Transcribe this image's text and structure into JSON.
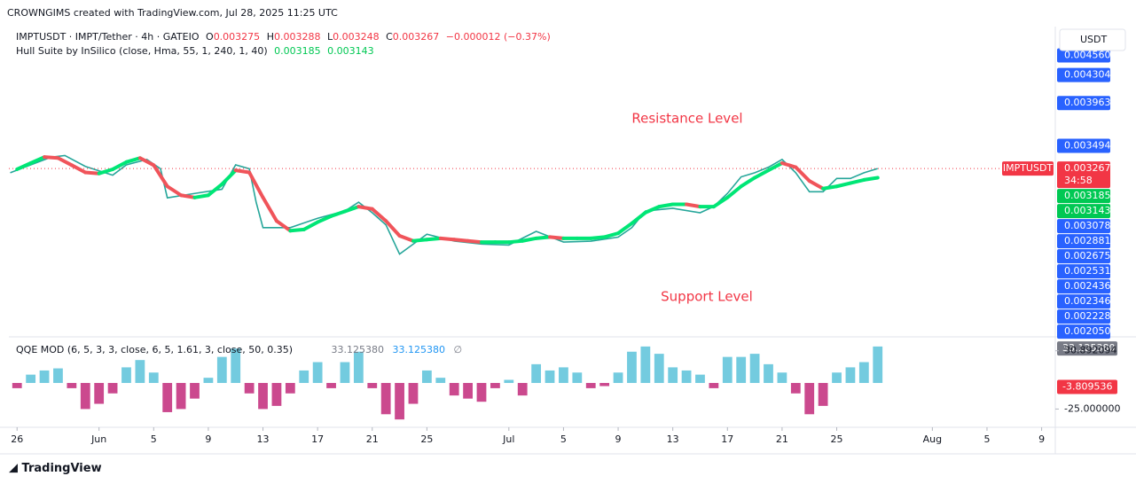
{
  "header": "CROWNGIMS created with TradingView.com, Jul 28, 2025 11:25 UTC",
  "legend": {
    "symbol": "IMPTUSDT · IMPT/Tether · 4h · GATEIO",
    "open_label": "O",
    "open": "0.003275",
    "high_label": "H",
    "high": "0.003288",
    "low_label": "L",
    "low": "0.003248",
    "close_label": "C",
    "close": "0.003267",
    "change": "−0.000012 (−0.37%)"
  },
  "hull_legend": {
    "value1": "0.003185",
    "value2": "0.003143"
  },
  "qqe_legend": {
    "name": "QQE MOD (6, 5, 3, 3, close, 6, 5, 1.61, 3, close, 50, 0.35)",
    "value1": "33.125380",
    "value2": "33.125380",
    "symbol": "∅"
  },
  "currency": "USDT",
  "price_tag": {
    "price": "0.003267",
    "countdown": "34:58"
  },
  "annotations": [
    "Resistance Level",
    "Support Level"
  ],
  "footer": "TradingView",
  "chart_data": [
    {
      "type": "line",
      "log": true,
      "xlim": [
        -0.6,
        76
      ],
      "xticks": [
        {
          "value": 0,
          "label": "26"
        },
        {
          "value": 6,
          "label": "Jun"
        },
        {
          "value": 10,
          "label": "5"
        },
        {
          "value": 14,
          "label": "9"
        },
        {
          "value": 18,
          "label": "13"
        },
        {
          "value": 22,
          "label": "17"
        },
        {
          "value": 26,
          "label": "21"
        },
        {
          "value": 30,
          "label": "25"
        },
        {
          "value": 36,
          "label": "Jul"
        },
        {
          "value": 40,
          "label": "5"
        },
        {
          "value": 44,
          "label": "9"
        },
        {
          "value": 48,
          "label": "13"
        },
        {
          "value": 52,
          "label": "17"
        },
        {
          "value": 56,
          "label": "21"
        },
        {
          "value": 60,
          "label": "25"
        },
        {
          "value": 67,
          "label": "Aug"
        },
        {
          "value": 71,
          "label": "5"
        },
        {
          "value": 75,
          "label": "9"
        }
      ],
      "ylim": [
        0.002,
        0.0049
      ],
      "yticks": [
        {
          "value": 0.00456,
          "label": "0.004560"
        },
        {
          "value": 0.004304,
          "label": "0.004304"
        },
        {
          "value": 0.003963,
          "label": "0.003963"
        },
        {
          "value": 0.003494,
          "label": "0.003494"
        },
        {
          "value": 0.003185,
          "label": "0.003185"
        },
        {
          "value": 0.003143,
          "label": "0.003143"
        },
        {
          "value": 0.003078,
          "label": "0.003078"
        },
        {
          "value": 0.002881,
          "label": "0.002881"
        },
        {
          "value": 0.002675,
          "label": "0.002675"
        },
        {
          "value": 0.002531,
          "label": "0.002531"
        },
        {
          "value": 0.002436,
          "label": "0.002436"
        },
        {
          "value": 0.002346,
          "label": "0.002346"
        },
        {
          "value": 0.002228,
          "label": "0.002228"
        },
        {
          "value": 0.00205,
          "label": "0.002050"
        }
      ],
      "tick_box_colors": [
        "#2962ff",
        "#2962ff",
        "#2962ff",
        "#2962ff",
        "#00c853",
        "#00c853",
        "#2962ff",
        "#2962ff",
        "#2962ff",
        "#2962ff",
        "#2962ff",
        "#2962ff",
        "#2962ff",
        "#2962ff"
      ],
      "grid": true,
      "grid_color": "#1e53e5",
      "series": [
        {
          "name": "IMPTUSDT",
          "color": "#26a69a",
          "tag_color": "#f23645",
          "x": [
            -0.5,
            1,
            2.5,
            3.5,
            5,
            7,
            8,
            9.5,
            10.5,
            11,
            13,
            15,
            16,
            17,
            17.5,
            18,
            20,
            22,
            24,
            25,
            26,
            27,
            28,
            29,
            30,
            32,
            34,
            36,
            38,
            40,
            42,
            44,
            45,
            46,
            48,
            50,
            51,
            52,
            53,
            54,
            55,
            56,
            57,
            58,
            59,
            60,
            61,
            62,
            63
          ],
          "values": [
            0.003227,
            0.003303,
            0.003379,
            0.003395,
            0.003288,
            0.003204,
            0.003303,
            0.003356,
            0.003265,
            0.002997,
            0.003036,
            0.003074,
            0.003303,
            0.003265,
            0.002959,
            0.002745,
            0.002745,
            0.002822,
            0.002883,
            0.002959,
            0.002868,
            0.002768,
            0.002539,
            0.002615,
            0.002692,
            0.002638,
            0.002615,
            0.002608,
            0.002715,
            0.002631,
            0.002638,
            0.002669,
            0.002745,
            0.002883,
            0.002906,
            0.002868,
            0.002921,
            0.003036,
            0.003188,
            0.003227,
            0.00328,
            0.003356,
            0.003227,
            0.003051,
            0.003051,
            0.003173,
            0.003173,
            0.003227,
            0.003267
          ]
        },
        {
          "name": "Hull Suite by InSilico (close, Hma, 55, 1, 240, 1, 40)",
          "rising_color": "#00e676",
          "falling_color": "#f0545a",
          "x": [
            0,
            1,
            2,
            3,
            4,
            5,
            6,
            7,
            8,
            9,
            10,
            11,
            12,
            13,
            14,
            15,
            16,
            17,
            18,
            19,
            20,
            21,
            22,
            23,
            24,
            25,
            26,
            27,
            28,
            29,
            30,
            31,
            32,
            33,
            34,
            35,
            36,
            37,
            38,
            39,
            40,
            41,
            42,
            43,
            44,
            45,
            46,
            47,
            48,
            49,
            50,
            51,
            52,
            53,
            54,
            55,
            56,
            57,
            58,
            59,
            60,
            61,
            62,
            63
          ],
          "values": [
            0.00326,
            0.00332,
            0.00338,
            0.00337,
            0.0033,
            0.00323,
            0.00322,
            0.00326,
            0.00333,
            0.00337,
            0.0033,
            0.0031,
            0.00302,
            0.003,
            0.00302,
            0.00312,
            0.00325,
            0.00323,
            0.003,
            0.0028,
            0.00272,
            0.00273,
            0.00279,
            0.00284,
            0.00288,
            0.00292,
            0.0029,
            0.0028,
            0.00268,
            0.00264,
            0.00265,
            0.00266,
            0.00265,
            0.00264,
            0.00263,
            0.00263,
            0.00263,
            0.00264,
            0.00266,
            0.00267,
            0.00266,
            0.00266,
            0.00266,
            0.00267,
            0.0027,
            0.00278,
            0.00287,
            0.00292,
            0.00294,
            0.00294,
            0.00292,
            0.00292,
            0.003,
            0.0031,
            0.00318,
            0.00325,
            0.00332,
            0.00328,
            0.00315,
            0.00308,
            0.0031,
            0.00313,
            0.00316,
            0.00318
          ]
        }
      ]
    },
    {
      "type": "bar",
      "xlim": [
        -0.6,
        76
      ],
      "ylim": [
        -40.8,
        41.7
      ],
      "yticks": [
        {
          "value": 33.12538,
          "label": "33.125380"
        },
        30.892094,
        -3.809536,
        {
          "value": -25,
          "label": "-25.000000"
        }
      ],
      "tick_box_colors": [
        "#787b86",
        null,
        "#f23645",
        null
      ],
      "positive_color": "#5bc2d9",
      "negative_color": "#c2297a",
      "x": [
        0,
        1,
        2,
        3,
        4,
        5,
        6,
        7,
        8,
        9,
        10,
        11,
        12,
        13,
        14,
        15,
        16,
        17,
        18,
        19,
        20,
        21,
        22,
        23,
        24,
        25,
        26,
        27,
        28,
        29,
        30,
        31,
        32,
        33,
        34,
        35,
        36,
        37,
        38,
        39,
        40,
        41,
        42,
        43,
        44,
        45,
        46,
        47,
        48,
        49,
        50,
        51,
        52,
        53,
        54,
        55,
        56,
        57,
        58,
        59,
        60,
        61,
        62,
        63
      ],
      "values": [
        -5,
        8,
        12,
        14,
        -5,
        -25,
        -20,
        -10,
        15,
        22,
        10,
        -28,
        -25,
        -15,
        5,
        25,
        33,
        -10,
        -25,
        -22,
        -10,
        12,
        20,
        -5,
        20,
        30,
        -5,
        -30,
        -35,
        -20,
        12,
        5,
        -12,
        -15,
        -18,
        -5,
        3,
        -12,
        18,
        12,
        15,
        10,
        -5,
        -3,
        10,
        30,
        35,
        28,
        15,
        12,
        8,
        -5,
        25,
        25,
        28,
        18,
        10,
        -10,
        -30,
        -22,
        10,
        15,
        20,
        35
      ]
    }
  ]
}
